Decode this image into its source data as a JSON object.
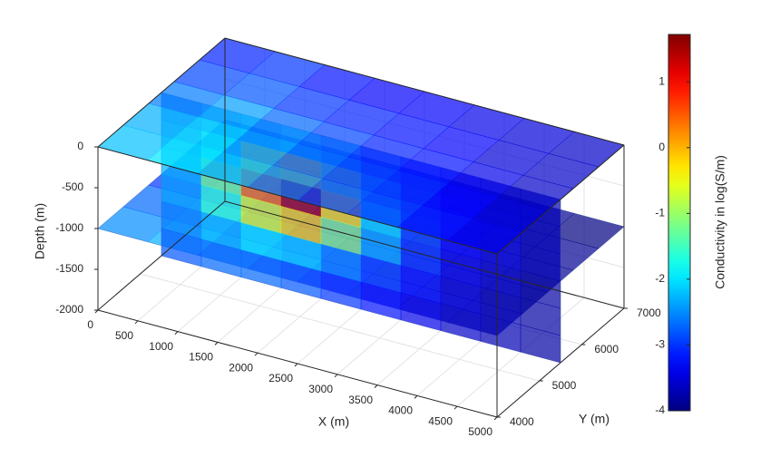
{
  "chart_data": {
    "type": "slice3d",
    "xlabel": "X (m)",
    "ylabel": "Y (m)",
    "zlabel": "Depth (m)",
    "xlim": [
      0,
      5000
    ],
    "ylim": [
      4000,
      7000
    ],
    "zlim": [
      -2000,
      0
    ],
    "xticks": [
      0,
      500,
      1000,
      1500,
      2000,
      2500,
      3000,
      3500,
      4000,
      4500,
      5000
    ],
    "yticks": [
      4000,
      5000,
      6000,
      7000
    ],
    "zticks": [
      0,
      -500,
      -1000,
      -1500,
      -2000
    ],
    "grid": true,
    "colormap": "jet",
    "alpha": 0.7,
    "colorbar": {
      "label": "Conductivity in log(S/m)",
      "clim": [
        -4,
        1.72
      ],
      "ticks": [
        1,
        0,
        -1,
        -2,
        -3,
        -4
      ]
    },
    "slices": [
      {
        "depth": -1000,
        "values": [
          [
            -2.5,
            -2.3,
            -2.7,
            -3.0,
            -3.3,
            -3.5,
            -3.7,
            -3.8
          ],
          [
            -2.7,
            -2.6,
            -2.9,
            -3.2,
            -3.4,
            -3.6,
            -3.8,
            -3.9
          ],
          [
            -3.0,
            -2.9,
            -3.1,
            -3.3,
            -3.5,
            -3.7,
            -3.8,
            -3.9
          ],
          [
            -3.2,
            -3.1,
            -3.3,
            -3.4,
            -3.6,
            -3.7,
            -3.9,
            -3.9
          ],
          [
            -3.3,
            -3.3,
            -3.4,
            -3.5,
            -3.6,
            -3.8,
            -3.9,
            -4.0
          ]
        ]
      },
      {
        "y": 5500,
        "values": [
          [
            -2.6,
            -2.4,
            -2.2,
            -2.0,
            -2.3,
            -2.8,
            -3.1,
            -3.4,
            -3.6,
            -3.7
          ],
          [
            -2.4,
            -1.8,
            -0.8,
            -0.4,
            -1.2,
            -2.4,
            -3.0,
            -3.3,
            -3.5,
            -3.7
          ],
          [
            -2.3,
            -1.2,
            0.4,
            1.5,
            -0.3,
            -2.0,
            -2.9,
            -3.3,
            -3.5,
            -3.7
          ],
          [
            -2.4,
            -1.6,
            -0.6,
            -0.2,
            -1.1,
            -2.3,
            -3.0,
            -3.4,
            -3.6,
            -3.8
          ],
          [
            -2.6,
            -2.3,
            -2.0,
            -2.1,
            -2.5,
            -2.9,
            -3.2,
            -3.5,
            -3.7,
            -3.8
          ],
          [
            -2.8,
            -2.7,
            -2.7,
            -2.8,
            -3.0,
            -3.2,
            -3.4,
            -3.6,
            -3.7,
            -3.8
          ]
        ]
      },
      {
        "depth": 0,
        "values": [
          [
            -2.2,
            -2.0,
            -2.3,
            -2.6,
            -2.9,
            -3.0,
            -3.2,
            -3.4
          ],
          [
            -2.3,
            -2.1,
            -2.5,
            -2.8,
            -3.0,
            -3.1,
            -3.3,
            -3.5
          ],
          [
            -2.6,
            -2.4,
            -2.7,
            -2.9,
            -3.1,
            -3.2,
            -3.4,
            -3.6
          ],
          [
            -2.9,
            -2.8,
            -3.0,
            -3.1,
            -3.2,
            -3.3,
            -3.5,
            -3.6
          ],
          [
            -3.1,
            -3.0,
            -3.2,
            -3.3,
            -3.3,
            -3.4,
            -3.5,
            -3.6
          ]
        ]
      }
    ]
  }
}
